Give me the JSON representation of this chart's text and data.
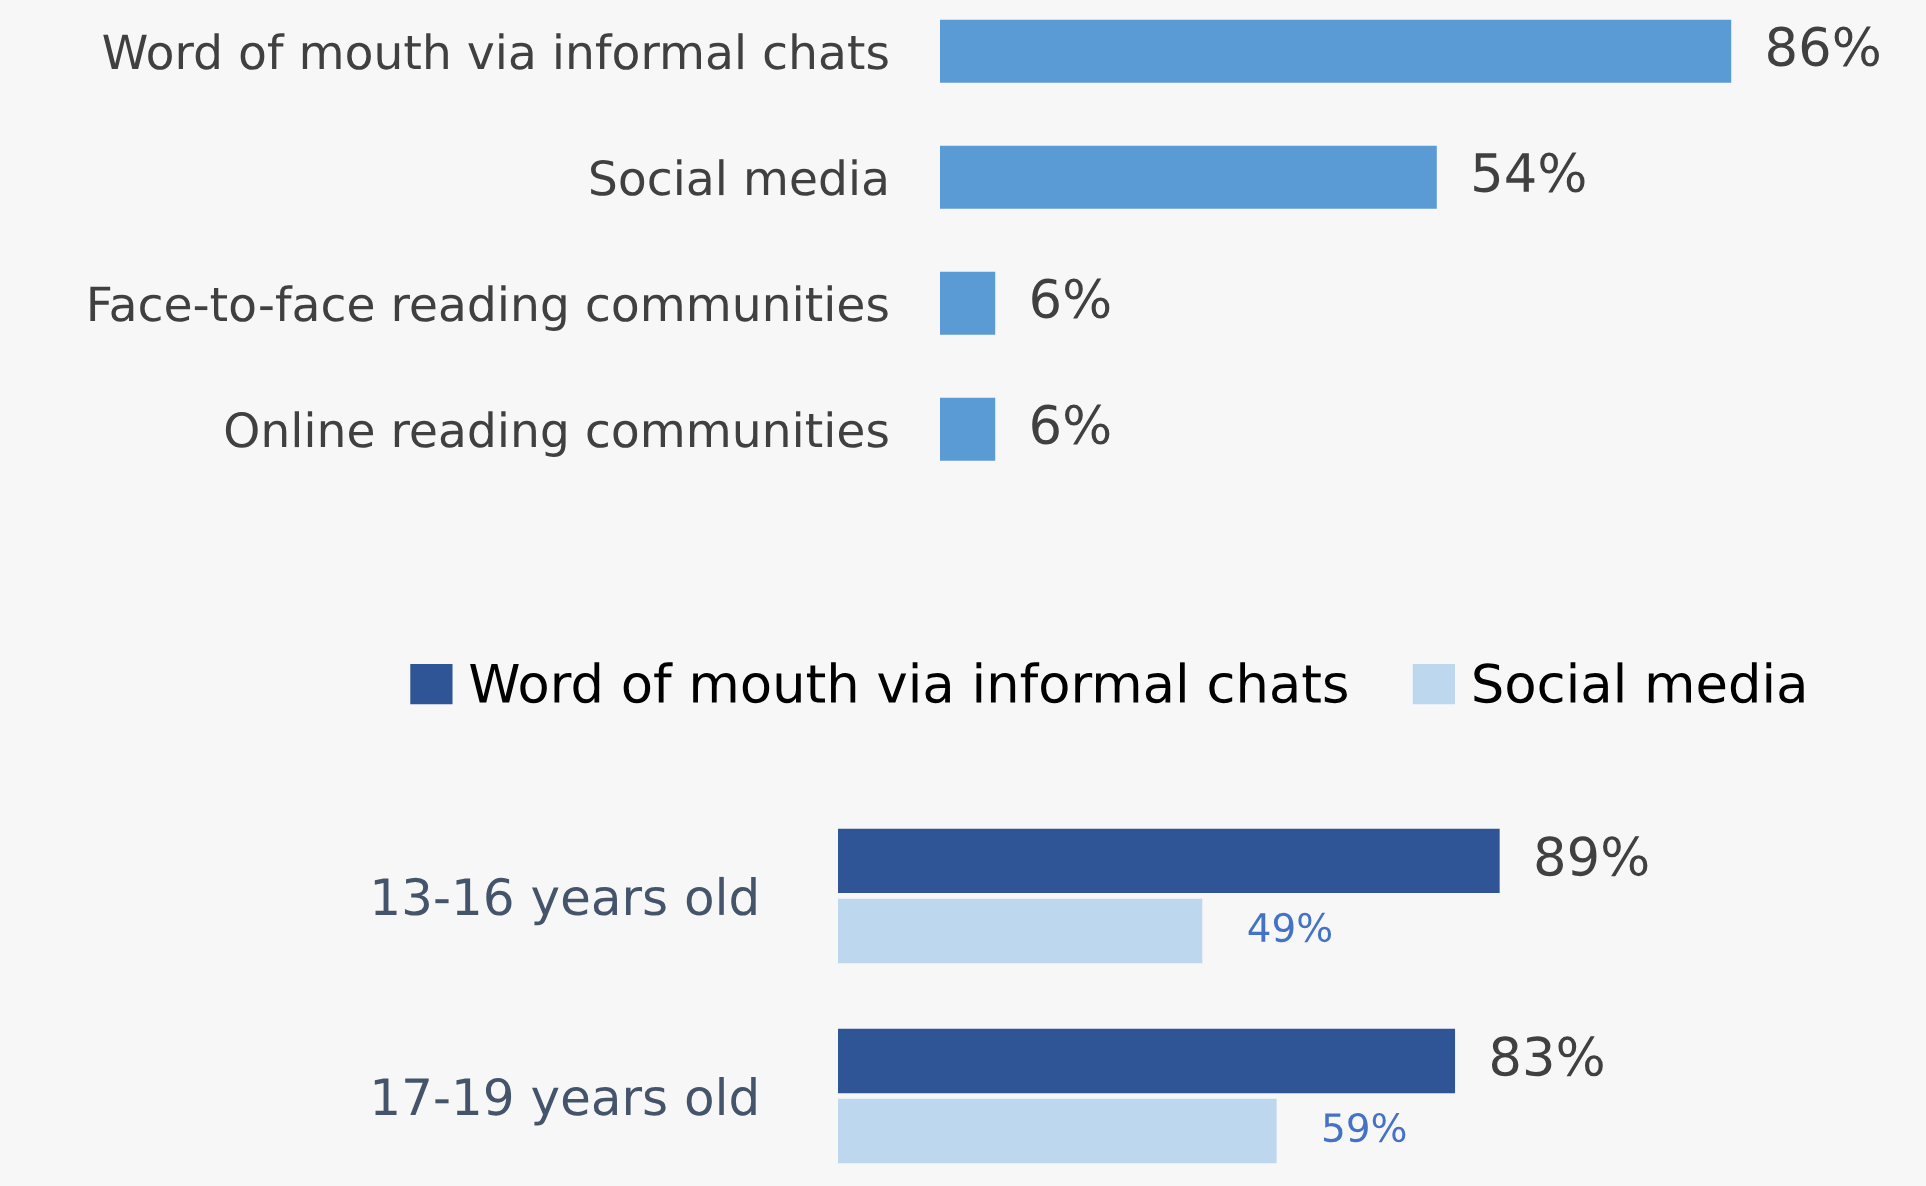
{
  "chart_data": [
    {
      "type": "bar",
      "orientation": "horizontal",
      "categories": [
        "Word of mouth via informal chats",
        "Social media",
        "Face-to-face reading communities",
        "Online reading communities"
      ],
      "values": [
        86,
        54,
        6,
        6
      ],
      "value_labels": [
        "86%",
        "54%",
        "6%",
        "6%"
      ],
      "color": "#5b9bd5"
    },
    {
      "type": "bar",
      "orientation": "horizontal",
      "legend": "top",
      "categories": [
        "13-16 years old",
        "17-19 years old"
      ],
      "series": [
        {
          "name": "Word of mouth via informal chats",
          "color": "#2f5597",
          "values": [
            89,
            83
          ],
          "value_labels": [
            "89%",
            "83%"
          ]
        },
        {
          "name": "Social media",
          "color": "#bdd7ee",
          "values": [
            49,
            59
          ],
          "value_labels": [
            "49%",
            "59%"
          ]
        }
      ]
    }
  ]
}
